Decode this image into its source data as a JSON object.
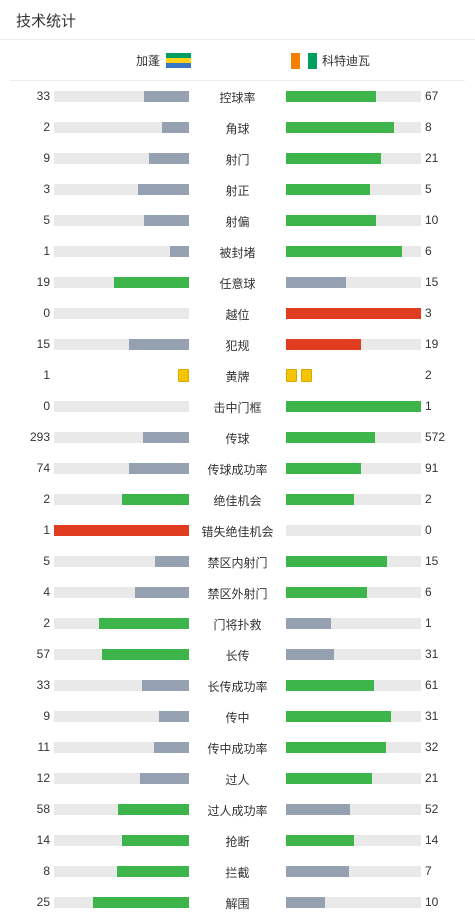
{
  "header": {
    "title": "技术统计"
  },
  "teams": {
    "home": {
      "name": "加蓬",
      "flag_colors": [
        "#009e60",
        "#fcd116",
        "#3a75c4"
      ],
      "flag_icon": "gabon-flag-icon"
    },
    "away": {
      "name": "科特迪瓦",
      "flag_colors": [
        "#f77f00",
        "#ffffff",
        "#009e60"
      ],
      "flag_icon": "ivory-coast-flag-icon"
    }
  },
  "colors": {
    "win": "#3db54a",
    "lose": "#95a0b1",
    "alert": "#e03c1f",
    "track": "#e9e9e9",
    "yellow_card": "#f5c400"
  },
  "stats": [
    {
      "label": "控球率",
      "home": "33",
      "away": "67",
      "home_fill": 0.33,
      "away_fill": 0.67,
      "home_color": "lose",
      "away_color": "win"
    },
    {
      "label": "角球",
      "home": "2",
      "away": "8",
      "home_fill": 0.2,
      "away_fill": 0.8,
      "home_color": "lose",
      "away_color": "win"
    },
    {
      "label": "射门",
      "home": "9",
      "away": "21",
      "home_fill": 0.3,
      "away_fill": 0.7,
      "home_color": "lose",
      "away_color": "win"
    },
    {
      "label": "射正",
      "home": "3",
      "away": "5",
      "home_fill": 0.375,
      "away_fill": 0.625,
      "home_color": "lose",
      "away_color": "win"
    },
    {
      "label": "射偏",
      "home": "5",
      "away": "10",
      "home_fill": 0.333,
      "away_fill": 0.667,
      "home_color": "lose",
      "away_color": "win"
    },
    {
      "label": "被封堵",
      "home": "1",
      "away": "6",
      "home_fill": 0.143,
      "away_fill": 0.857,
      "home_color": "lose",
      "away_color": "win"
    },
    {
      "label": "任意球",
      "home": "19",
      "away": "15",
      "home_fill": 0.559,
      "away_fill": 0.441,
      "home_color": "win",
      "away_color": "lose"
    },
    {
      "label": "越位",
      "home": "0",
      "away": "3",
      "home_fill": 0,
      "away_fill": 1,
      "home_color": "lose",
      "away_color": "alert"
    },
    {
      "label": "犯规",
      "home": "15",
      "away": "19",
      "home_fill": 0.441,
      "away_fill": 0.559,
      "home_color": "lose",
      "away_color": "alert"
    },
    {
      "label": "黄牌",
      "home": "1",
      "away": "2",
      "type": "cards",
      "home_cards": 1,
      "away_cards": 2
    },
    {
      "label": "击中门框",
      "home": "0",
      "away": "1",
      "home_fill": 0,
      "away_fill": 1,
      "home_color": "lose",
      "away_color": "win"
    },
    {
      "label": "传球",
      "home": "293",
      "away": "572",
      "home_fill": 0.339,
      "away_fill": 0.661,
      "home_color": "lose",
      "away_color": "win"
    },
    {
      "label": "传球成功率",
      "home": "74",
      "away": "91",
      "home_fill": 0.448,
      "away_fill": 0.552,
      "home_color": "lose",
      "away_color": "win"
    },
    {
      "label": "绝佳机会",
      "home": "2",
      "away": "2",
      "home_fill": 0.5,
      "away_fill": 0.5,
      "home_color": "win",
      "away_color": "win"
    },
    {
      "label": "错失绝佳机会",
      "home": "1",
      "away": "0",
      "home_fill": 1,
      "away_fill": 0,
      "home_color": "alert",
      "away_color": "lose"
    },
    {
      "label": "禁区内射门",
      "home": "5",
      "away": "15",
      "home_fill": 0.25,
      "away_fill": 0.75,
      "home_color": "lose",
      "away_color": "win"
    },
    {
      "label": "禁区外射门",
      "home": "4",
      "away": "6",
      "home_fill": 0.4,
      "away_fill": 0.6,
      "home_color": "lose",
      "away_color": "win"
    },
    {
      "label": "门将扑救",
      "home": "2",
      "away": "1",
      "home_fill": 0.667,
      "away_fill": 0.333,
      "home_color": "win",
      "away_color": "lose"
    },
    {
      "label": "长传",
      "home": "57",
      "away": "31",
      "home_fill": 0.648,
      "away_fill": 0.352,
      "home_color": "win",
      "away_color": "lose"
    },
    {
      "label": "长传成功率",
      "home": "33",
      "away": "61",
      "home_fill": 0.351,
      "away_fill": 0.649,
      "home_color": "lose",
      "away_color": "win"
    },
    {
      "label": "传中",
      "home": "9",
      "away": "31",
      "home_fill": 0.225,
      "away_fill": 0.775,
      "home_color": "lose",
      "away_color": "win"
    },
    {
      "label": "传中成功率",
      "home": "11",
      "away": "32",
      "home_fill": 0.256,
      "away_fill": 0.744,
      "home_color": "lose",
      "away_color": "win"
    },
    {
      "label": "过人",
      "home": "12",
      "away": "21",
      "home_fill": 0.364,
      "away_fill": 0.636,
      "home_color": "lose",
      "away_color": "win"
    },
    {
      "label": "过人成功率",
      "home": "58",
      "away": "52",
      "home_fill": 0.527,
      "away_fill": 0.473,
      "home_color": "win",
      "away_color": "lose"
    },
    {
      "label": "抢断",
      "home": "14",
      "away": "14",
      "home_fill": 0.5,
      "away_fill": 0.5,
      "home_color": "win",
      "away_color": "win"
    },
    {
      "label": "拦截",
      "home": "8",
      "away": "7",
      "home_fill": 0.533,
      "away_fill": 0.467,
      "home_color": "win",
      "away_color": "lose"
    },
    {
      "label": "解围",
      "home": "25",
      "away": "10",
      "home_fill": 0.714,
      "away_fill": 0.286,
      "home_color": "win",
      "away_color": "lose"
    }
  ]
}
